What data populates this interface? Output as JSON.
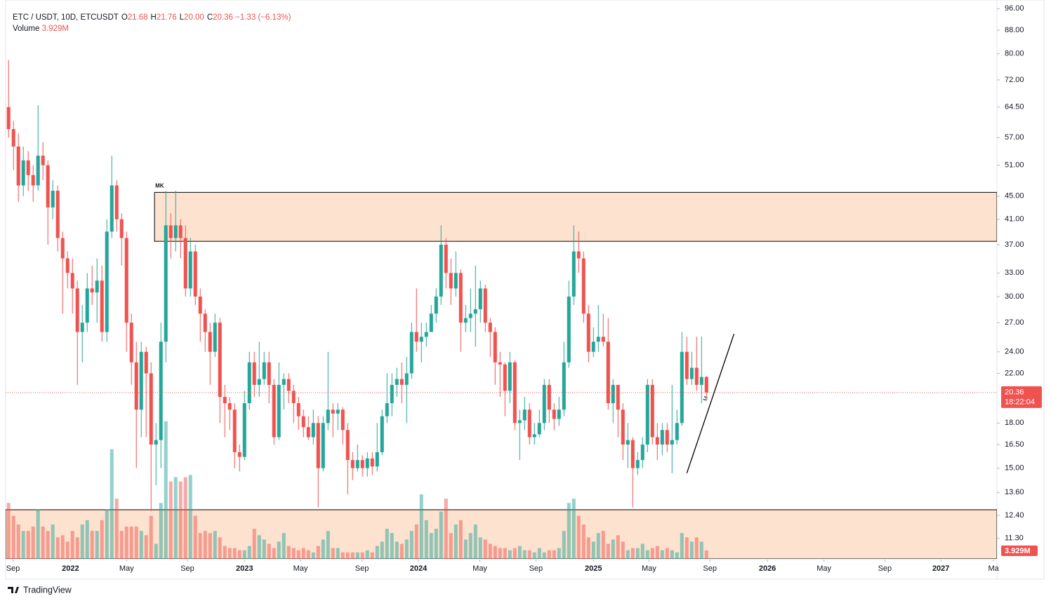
{
  "chart_data": {
    "type": "candlestick",
    "title": "ETC / USDT, 10D, ETCUSDT",
    "legend": [
      {
        "key": "O",
        "value": "21.68"
      },
      {
        "key": "H",
        "value": "21.76"
      },
      {
        "key": "L",
        "value": "20.00"
      },
      {
        "key": "C",
        "value": "20.36"
      }
    ],
    "change": "−1.33 (−6.13%)",
    "volume_name": "Volume",
    "volume_value": "3.929M",
    "last_price_label": "20.36",
    "countdown": "18:22:04",
    "up_color": "#26a69a",
    "down_color": "#ef5350",
    "log_scale": true,
    "grid": false,
    "open": [
      64.5,
      59,
      55,
      47,
      52,
      49,
      47,
      53,
      51,
      43,
      46,
      38,
      35,
      33,
      31,
      26,
      27,
      31,
      30.5,
      32,
      26,
      39,
      47,
      41,
      38,
      27,
      23,
      19,
      24,
      22,
      16.5,
      16.8,
      25,
      40,
      38,
      40,
      38,
      31,
      36,
      30,
      28,
      26,
      24,
      27,
      20,
      19.5,
      19,
      16,
      15.7,
      19.5,
      23,
      21,
      21.5,
      23,
      21,
      17,
      21,
      21.5,
      20.5,
      19.5,
      18.5,
      17.7,
      17,
      18,
      15,
      18,
      19,
      18.7,
      19,
      17.5,
      15.5,
      15,
      15.5,
      15,
      15.6,
      15.1,
      16,
      18.5,
      19.5,
      21,
      21.5,
      21,
      22,
      26,
      25,
      25.5,
      26,
      28,
      30,
      37,
      33,
      31,
      33,
      27,
      27.5,
      28,
      28.5,
      31,
      27,
      26,
      23,
      22.8,
      20.5,
      23,
      18,
      18.2,
      19,
      17,
      17.2,
      18,
      21,
      19,
      18.3,
      19,
      23,
      30,
      36,
      35,
      28,
      24,
      25,
      25.5,
      25,
      19.5,
      21,
      19,
      16.5,
      16.8,
      15,
      15.5,
      16.5,
      21,
      17,
      16.5,
      17.5,
      16.5,
      16.8,
      18,
      24,
      21.5,
      22.5,
      21,
      21.68
    ],
    "high": [
      78,
      61,
      58,
      55,
      54,
      51,
      65,
      56,
      52,
      48,
      47,
      39,
      36,
      35,
      32,
      29,
      33,
      34,
      35,
      34,
      41,
      53,
      48,
      42,
      39,
      28,
      25,
      25,
      24.5,
      23,
      18,
      27,
      46,
      42,
      46,
      41,
      40,
      38,
      37,
      31,
      28.5,
      27,
      28,
      27.5,
      21,
      20,
      19.5,
      16.5,
      20.5,
      24,
      24,
      25,
      24,
      24,
      21.5,
      23,
      22,
      22,
      21,
      20,
      19,
      18.5,
      19,
      18.5,
      18.5,
      24,
      19.5,
      19.5,
      19.2,
      18,
      16,
      16.5,
      15.8,
      16,
      16,
      18,
      19,
      22,
      22,
      22.5,
      23,
      23.5,
      27,
      31,
      27,
      27,
      29,
      31,
      40,
      38,
      35,
      36,
      33.5,
      29,
      31,
      34,
      32,
      31.5,
      27.5,
      26.5,
      24,
      23,
      24,
      23.2,
      19,
      20,
      19.5,
      18,
      19,
      21.5,
      21.5,
      19.5,
      20,
      25,
      32,
      40,
      39,
      36,
      29,
      26.5,
      29,
      28,
      27.5,
      21.5,
      21,
      19.5,
      18,
      17,
      16,
      17,
      21.5,
      21.5,
      18,
      18,
      18,
      21,
      19,
      26,
      25.5,
      24,
      25.5,
      25.5,
      21.76
    ],
    "low": [
      57,
      50,
      44,
      45,
      46,
      44,
      46,
      48,
      37,
      41,
      36,
      28,
      31,
      28,
      21,
      23,
      26,
      29,
      27,
      25,
      25,
      38,
      39,
      34,
      24,
      21,
      15,
      17,
      17,
      12.6,
      14,
      15,
      23,
      35,
      36,
      35,
      30,
      30,
      29,
      25,
      24,
      21,
      23.5,
      18,
      17,
      17.5,
      15,
      14.8,
      15.5,
      19,
      20,
      20,
      21,
      19.5,
      16.5,
      16.8,
      19,
      19.5,
      18,
      17.5,
      17,
      16.8,
      16.5,
      12.8,
      14.8,
      17.5,
      17,
      17.5,
      16.5,
      13.5,
      14.3,
      14.8,
      14.5,
      14.5,
      14.6,
      14.8,
      15.8,
      18,
      18.5,
      20,
      19.5,
      18,
      21.5,
      24,
      23,
      24.5,
      26,
      27,
      29,
      31,
      29,
      30,
      24,
      26,
      26,
      24.5,
      27,
      26,
      23.5,
      21,
      20,
      18.5,
      19.5,
      17.5,
      15.5,
      17.5,
      16.5,
      16.5,
      17,
      17.5,
      18,
      17.5,
      17.8,
      18.5,
      22.5,
      29,
      33,
      27,
      23,
      23.5,
      24,
      24.5,
      19,
      18,
      17,
      15.5,
      15,
      12.8,
      14.6,
      15,
      16,
      16.5,
      15.5,
      15.8,
      16,
      14.7,
      16.5,
      17.8,
      21,
      21,
      20.5,
      19.5,
      20.0
    ],
    "close": [
      59,
      55,
      47,
      52,
      49,
      47,
      53,
      51,
      43,
      46,
      38,
      35,
      33,
      31,
      26,
      27,
      31,
      30.5,
      32,
      26,
      39,
      47,
      41,
      38,
      27,
      23,
      19,
      24,
      22,
      16.5,
      16.8,
      25,
      40,
      38,
      40,
      38,
      31,
      36,
      30,
      28,
      26,
      24,
      27,
      20,
      19.5,
      19,
      16,
      15.7,
      19.5,
      23,
      21,
      21.5,
      23,
      21,
      17,
      21,
      21.5,
      20.5,
      19.5,
      18.5,
      17.7,
      17,
      18,
      15,
      18,
      19,
      18.7,
      19,
      17.5,
      15.5,
      15,
      15.5,
      15,
      15.6,
      15.1,
      16,
      18.5,
      19.5,
      21,
      21.5,
      21,
      22,
      26,
      25,
      25.5,
      26,
      28,
      30,
      37,
      33,
      31,
      33,
      27,
      27.5,
      28,
      28.5,
      31,
      27,
      26,
      23,
      22.8,
      20.5,
      23,
      18,
      18.2,
      19,
      17,
      17.2,
      18,
      21,
      19,
      18.3,
      19,
      23,
      30,
      36,
      35,
      28,
      24,
      25,
      25.5,
      25,
      19.5,
      21,
      19,
      16.5,
      16.8,
      15,
      15.5,
      16.5,
      21,
      17,
      16.5,
      17.5,
      16.5,
      16.8,
      18,
      24,
      21.5,
      22.5,
      21,
      21.68,
      20.36
    ],
    "volume": [
      26,
      20,
      16,
      13,
      13,
      15,
      23,
      15,
      13,
      16,
      10,
      11,
      8,
      13,
      10,
      16,
      18,
      13,
      13,
      18,
      23,
      51,
      28,
      13,
      15,
      15,
      15,
      13,
      11,
      20,
      7,
      26,
      64,
      36,
      38,
      36,
      38,
      39,
      20,
      12,
      13,
      12,
      13,
      10,
      6,
      5,
      5,
      4,
      4,
      6,
      14,
      11,
      9,
      7,
      5,
      8,
      12,
      6,
      5,
      4,
      5,
      4,
      3,
      6,
      9,
      13,
      5,
      5,
      3,
      3,
      3,
      3,
      3,
      4,
      3,
      6,
      8,
      14,
      12,
      8,
      7,
      9,
      13,
      16,
      30,
      18,
      12,
      14,
      22,
      28,
      12,
      16,
      18,
      9,
      12,
      16,
      10,
      9,
      7,
      6,
      5,
      5,
      4,
      5,
      6,
      4,
      4,
      3,
      5,
      3,
      4,
      4,
      5,
      13,
      26,
      28,
      20,
      16,
      10,
      8,
      12,
      13,
      7,
      9,
      11,
      8,
      4,
      5,
      5,
      7,
      4,
      5,
      6,
      4,
      5,
      4,
      3,
      12,
      10,
      8,
      10,
      8,
      3.929
    ],
    "volume_ylim": [
      0,
      260
    ],
    "xlim": [
      -0.6,
      201.1
    ],
    "xticks": [
      {
        "value": 0.9,
        "label": "Sep"
      },
      {
        "value": 12.6,
        "label": "2022"
      },
      {
        "value": 24,
        "label": "May"
      },
      {
        "value": 36.4,
        "label": "Sep"
      },
      {
        "value": 48,
        "label": "2023"
      },
      {
        "value": 59.4,
        "label": "May"
      },
      {
        "value": 71.9,
        "label": "Sep"
      },
      {
        "value": 83.4,
        "label": "2024"
      },
      {
        "value": 95.9,
        "label": "May"
      },
      {
        "value": 107.3,
        "label": "Sep"
      },
      {
        "value": 119,
        "label": "2025"
      },
      {
        "value": 130.3,
        "label": "May"
      },
      {
        "value": 142.7,
        "label": "Sep"
      },
      {
        "value": 154.4,
        "label": "2026"
      },
      {
        "value": 165.9,
        "label": "May"
      },
      {
        "value": 178.3,
        "label": "Sep"
      },
      {
        "value": 189.7,
        "label": "2027"
      },
      {
        "value": 200.4,
        "label": "Ma"
      }
    ],
    "ylim": [
      10.4,
      99.4
    ],
    "yticks": [
      {
        "value": 96,
        "label": "96.00"
      },
      {
        "value": 88,
        "label": "88.00"
      },
      {
        "value": 80,
        "label": "80.00"
      },
      {
        "value": 72,
        "label": "72.00"
      },
      {
        "value": 64.5,
        "label": "64.50"
      },
      {
        "value": 57,
        "label": "57.00"
      },
      {
        "value": 51,
        "label": "51.00"
      },
      {
        "value": 45,
        "label": "45.00"
      },
      {
        "value": 41,
        "label": "41.00"
      },
      {
        "value": 37,
        "label": "37.00"
      },
      {
        "value": 33,
        "label": "33.00"
      },
      {
        "value": 30,
        "label": "30.00"
      },
      {
        "value": 27,
        "label": "27.00"
      },
      {
        "value": 24,
        "label": "24.00"
      },
      {
        "value": 22,
        "label": "22.00"
      },
      {
        "value": 18,
        "label": "18.00"
      },
      {
        "value": 16.5,
        "label": "16.50"
      },
      {
        "value": 15,
        "label": "15.00"
      },
      {
        "value": 13.6,
        "label": "13.60"
      },
      {
        "value": 12.4,
        "label": "12.40"
      },
      {
        "value": 11.3,
        "label": "11.30"
      }
    ],
    "zones": [
      {
        "label": "MK",
        "x0": 29.7,
        "y": [
          37.5,
          45.7
        ]
      },
      {
        "x0": -0.6,
        "y": [
          10.4,
          12.68
        ]
      }
    ],
    "zone_color": "#fde3cf",
    "trendline": {
      "x": [
        138,
        147.6
      ],
      "y": [
        14.7,
        25.8
      ],
      "label": "M"
    },
    "branding": "TradingView"
  }
}
